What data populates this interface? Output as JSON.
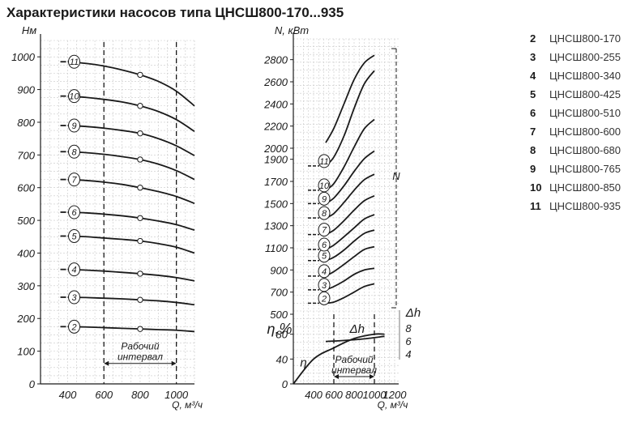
{
  "title": "Характеристики насосов типа ЦНСШ800-170...935",
  "legend": [
    {
      "num": "2",
      "name": "ЦНСШ800-170"
    },
    {
      "num": "3",
      "name": "ЦНСШ800-255"
    },
    {
      "num": "4",
      "name": "ЦНСШ800-340"
    },
    {
      "num": "5",
      "name": "ЦНСШ800-425"
    },
    {
      "num": "6",
      "name": "ЦНСШ800-510"
    },
    {
      "num": "7",
      "name": "ЦНСШ800-600"
    },
    {
      "num": "8",
      "name": "ЦНСШ800-680"
    },
    {
      "num": "9",
      "name": "ЦНСШ800-765"
    },
    {
      "num": "10",
      "name": "ЦНСШ800-850"
    },
    {
      "num": "11",
      "name": "ЦНСШ800-935"
    }
  ],
  "colors": {
    "curve": "#1a1a1a",
    "grid": "#c8c8c8",
    "dh_axis": "#7a7a7a"
  },
  "chart_data": [
    {
      "type": "line",
      "title": "",
      "ylabel": "Hм",
      "xlabel": "Q, м³/ч",
      "xlim": [
        250,
        1100
      ],
      "ylim": [
        0,
        1050
      ],
      "xticks": [
        400,
        600,
        800,
        1000
      ],
      "yticks": [
        0,
        100,
        200,
        300,
        400,
        500,
        600,
        700,
        800,
        900,
        1000
      ],
      "grid": true,
      "work_interval": {
        "label_line1": "Рабочий",
        "label_line2": "интервал",
        "from": 600,
        "to": 1000
      },
      "x": [
        400,
        500,
        600,
        700,
        800,
        900,
        1000,
        1100
      ],
      "series": [
        {
          "name": "2",
          "marker_x": 800,
          "values": [
            175,
            174,
            172,
            170,
            168,
            166,
            164,
            160
          ]
        },
        {
          "name": "3",
          "marker_x": 800,
          "values": [
            265,
            264,
            262,
            260,
            257,
            254,
            249,
            242
          ]
        },
        {
          "name": "4",
          "marker_x": 800,
          "values": [
            350,
            348,
            345,
            341,
            337,
            332,
            325,
            315
          ]
        },
        {
          "name": "5",
          "marker_x": 800,
          "values": [
            452,
            450,
            446,
            442,
            437,
            429,
            418,
            400
          ]
        },
        {
          "name": "6",
          "marker_x": 800,
          "values": [
            525,
            523,
            519,
            514,
            507,
            498,
            487,
            470
          ]
        },
        {
          "name": "7",
          "marker_x": 800,
          "values": [
            625,
            622,
            617,
            610,
            600,
            588,
            573,
            552
          ]
        },
        {
          "name": "8",
          "marker_x": 800,
          "values": [
            710,
            707,
            702,
            695,
            686,
            672,
            652,
            625
          ]
        },
        {
          "name": "9",
          "marker_x": 800,
          "values": [
            790,
            787,
            782,
            775,
            766,
            750,
            728,
            698
          ]
        },
        {
          "name": "10",
          "marker_x": 800,
          "values": [
            880,
            876,
            870,
            862,
            850,
            833,
            808,
            772
          ]
        },
        {
          "name": "11",
          "marker_x": 800,
          "values": [
            985,
            980,
            972,
            960,
            945,
            925,
            895,
            850
          ]
        }
      ]
    },
    {
      "type": "line",
      "title": "",
      "ylabel": "N, кВт",
      "ylabel_eta": "η,%",
      "xlabel": "Q, м³/ч",
      "xlim": [
        200,
        1240
      ],
      "xticks": [
        400,
        600,
        800,
        1000,
        1200
      ],
      "n_ticks": [
        500,
        700,
        900,
        1100,
        1300,
        1500,
        1700,
        1900,
        2000,
        2200,
        2400,
        2600,
        2800
      ],
      "eta_ticks": [
        0,
        40,
        80
      ],
      "dh_label": "Δh",
      "dh_ticks": [
        4,
        6,
        8
      ],
      "n_label": "N",
      "eta_label": "η",
      "grid": true,
      "work_interval": {
        "label_line1": "Рабочий",
        "label_line2": "интервал",
        "from": 600,
        "to": 1000
      },
      "power_x": [
        520,
        600,
        700,
        800,
        900,
        1000
      ],
      "power_series": [
        {
          "name": "2",
          "values": [
            600,
            610,
            650,
            700,
            750,
            775
          ]
        },
        {
          "name": "3",
          "values": [
            720,
            750,
            800,
            860,
            900,
            915
          ]
        },
        {
          "name": "4",
          "values": [
            845,
            885,
            950,
            1020,
            1085,
            1110
          ]
        },
        {
          "name": "5",
          "values": [
            985,
            1015,
            1080,
            1160,
            1230,
            1260
          ]
        },
        {
          "name": "6",
          "values": [
            1085,
            1125,
            1200,
            1280,
            1360,
            1400
          ]
        },
        {
          "name": "7",
          "values": [
            1220,
            1260,
            1345,
            1440,
            1525,
            1570
          ]
        },
        {
          "name": "8",
          "values": [
            1370,
            1410,
            1510,
            1620,
            1715,
            1765
          ]
        },
        {
          "name": "9",
          "values": [
            1500,
            1550,
            1660,
            1790,
            1905,
            1975
          ]
        },
        {
          "name": "10",
          "values": [
            1620,
            1680,
            1830,
            2010,
            2175,
            2260
          ]
        },
        {
          "name": "11",
          "values": [
            1840,
            1920,
            2110,
            2360,
            2580,
            2700
          ]
        }
      ],
      "power_series_extra_top": {
        "name": "top",
        "values": [
          2050,
          2180,
          2400,
          2620,
          2770,
          2840
        ]
      },
      "efficiency": {
        "x": [
          200,
          400,
          600,
          800,
          1000,
          1100
        ],
        "values": [
          0,
          40,
          58,
          73,
          80,
          80
        ]
      },
      "npsh": {
        "x": [
          520,
          700,
          900,
          1100
        ],
        "values": [
          5.8,
          5.95,
          6.2,
          6.6
        ]
      }
    }
  ]
}
